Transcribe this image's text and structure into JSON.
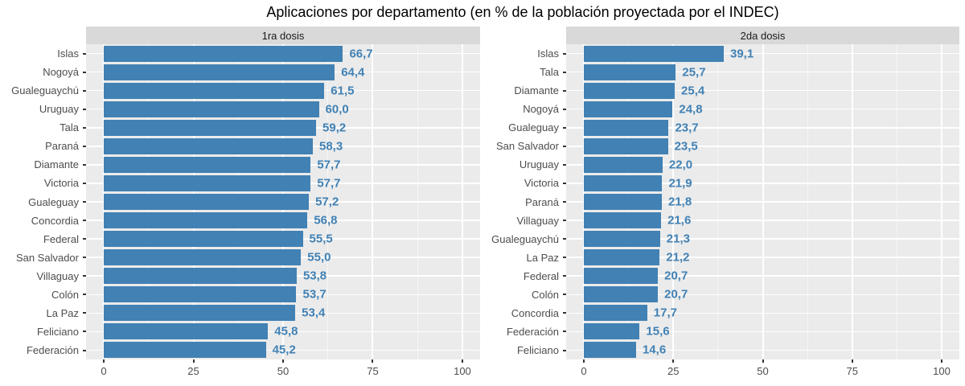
{
  "title": "Aplicaciones por departamento (en % de la población proyectada por el INDEC)",
  "colors": {
    "bar": "#4181B4",
    "value_label": "#4181B4",
    "panel_bg": "#EBEBEB",
    "strip_bg": "#D9D9D9",
    "gridline": "#FFFFFF",
    "axis_text": "#4D4D4D",
    "title_text": "#000000"
  },
  "chart_data": [
    {
      "type": "bar",
      "orientation": "horizontal",
      "facet_label": "1ra dosis",
      "categories": [
        "Islas",
        "Nogoyá",
        "Gualeguaychú",
        "Uruguay",
        "Tala",
        "Paraná",
        "Diamante",
        "Victoria",
        "Gualeguay",
        "Concordia",
        "Federal",
        "San Salvador",
        "Villaguay",
        "Colón",
        "La Paz",
        "Feliciano",
        "Federación"
      ],
      "values": [
        66.7,
        64.4,
        61.5,
        60.0,
        59.2,
        58.3,
        57.7,
        57.7,
        57.2,
        56.8,
        55.5,
        55.0,
        53.8,
        53.7,
        53.4,
        45.8,
        45.2
      ],
      "value_labels": [
        "66,7",
        "64,4",
        "61,5",
        "60,0",
        "59,2",
        "58,3",
        "57,7",
        "57,7",
        "57,2",
        "56,8",
        "55,5",
        "55,0",
        "53,8",
        "53,7",
        "53,4",
        "45,8",
        "45,2"
      ],
      "xlim": [
        0,
        100
      ],
      "x_tick_values": [
        0,
        25,
        50,
        75,
        100
      ],
      "x_tick_labels": [
        "0",
        "25",
        "50",
        "75",
        "100"
      ],
      "grid": "on",
      "legend": "none"
    },
    {
      "type": "bar",
      "orientation": "horizontal",
      "facet_label": "2da dosis",
      "categories": [
        "Islas",
        "Tala",
        "Diamante",
        "Nogoyá",
        "Gualeguay",
        "San Salvador",
        "Uruguay",
        "Victoria",
        "Paraná",
        "Villaguay",
        "Gualeguaychú",
        "La Paz",
        "Federal",
        "Colón",
        "Concordia",
        "Federación",
        "Feliciano"
      ],
      "values": [
        39.1,
        25.7,
        25.4,
        24.8,
        23.7,
        23.5,
        22.0,
        21.9,
        21.8,
        21.6,
        21.3,
        21.2,
        20.7,
        20.7,
        17.7,
        15.6,
        14.6
      ],
      "value_labels": [
        "39,1",
        "25,7",
        "25,4",
        "24,8",
        "23,7",
        "23,5",
        "22,0",
        "21,9",
        "21,8",
        "21,6",
        "21,3",
        "21,2",
        "20,7",
        "20,7",
        "17,7",
        "15,6",
        "14,6"
      ],
      "xlim": [
        0,
        100
      ],
      "x_tick_values": [
        0,
        25,
        50,
        75,
        100
      ],
      "x_tick_labels": [
        "0",
        "25",
        "50",
        "75",
        "100"
      ],
      "grid": "on",
      "legend": "none"
    }
  ]
}
